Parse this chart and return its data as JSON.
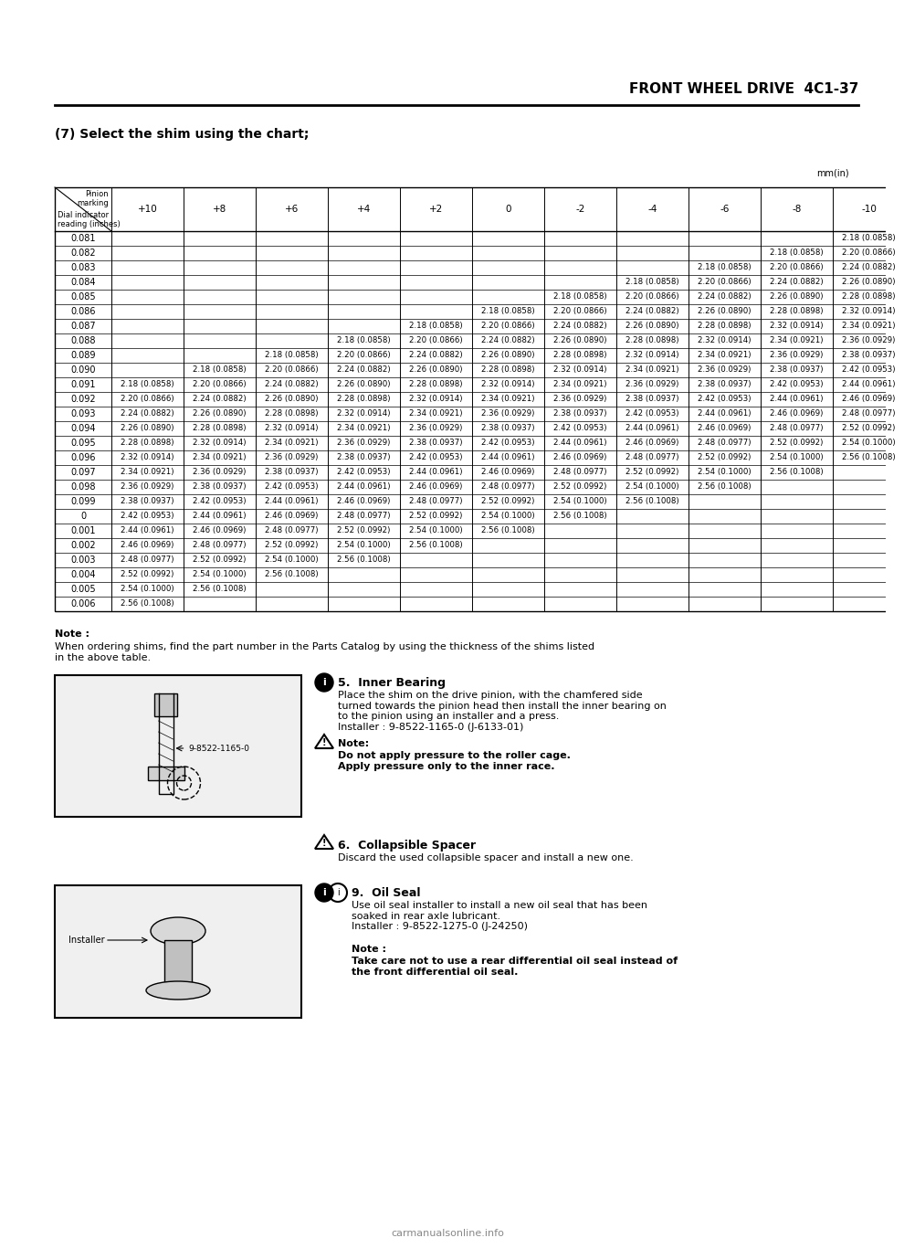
{
  "header_title": "FRONT WHEEL DRIVE  4C1-37",
  "section_title": "(7) Select the shim using the chart;",
  "unit_label": "mm(in)",
  "col_headers": [
    "+10",
    "+8",
    "+6",
    "+4",
    "+2",
    "0",
    "-2",
    "-4",
    "-6",
    "-8",
    "-10"
  ],
  "row_headers": [
    "0.081",
    "0.082",
    "0.083",
    "0.084",
    "0.085",
    "0.086",
    "0.087",
    "0.088",
    "0.089",
    "0.090",
    "0.091",
    "0.092",
    "0.093",
    "0.094",
    "0.095",
    "0.096",
    "0.097",
    "0.098",
    "0.099",
    "0",
    "0.001",
    "0.002",
    "0.003",
    "0.004",
    "0.005",
    "0.006"
  ],
  "table_data": [
    [
      "",
      "",
      "",
      "",
      "",
      "",
      "",
      "",
      "",
      "",
      "2.18 (0.0858)"
    ],
    [
      "",
      "",
      "",
      "",
      "",
      "",
      "",
      "",
      "",
      "2.18 (0.0858)",
      "2.20 (0.0866)"
    ],
    [
      "",
      "",
      "",
      "",
      "",
      "",
      "",
      "",
      "2.18 (0.0858)",
      "2.20 (0.0866)",
      "2.24 (0.0882)"
    ],
    [
      "",
      "",
      "",
      "",
      "",
      "",
      "",
      "2.18 (0.0858)",
      "2.20 (0.0866)",
      "2.24 (0.0882)",
      "2.26 (0.0890)"
    ],
    [
      "",
      "",
      "",
      "",
      "",
      "",
      "2.18 (0.0858)",
      "2.20 (0.0866)",
      "2.24 (0.0882)",
      "2.26 (0.0890)",
      "2.28 (0.0898)"
    ],
    [
      "",
      "",
      "",
      "",
      "",
      "2.18 (0.0858)",
      "2.20 (0.0866)",
      "2.24 (0.0882)",
      "2.26 (0.0890)",
      "2.28 (0.0898)",
      "2.32 (0.0914)"
    ],
    [
      "",
      "",
      "",
      "",
      "2.18 (0.0858)",
      "2.20 (0.0866)",
      "2.24 (0.0882)",
      "2.26 (0.0890)",
      "2.28 (0.0898)",
      "2.32 (0.0914)",
      "2.34 (0.0921)"
    ],
    [
      "",
      "",
      "",
      "2.18 (0.0858)",
      "2.20 (0.0866)",
      "2.24 (0.0882)",
      "2.26 (0.0890)",
      "2.28 (0.0898)",
      "2.32 (0.0914)",
      "2.34 (0.0921)",
      "2.36 (0.0929)"
    ],
    [
      "",
      "",
      "2.18 (0.0858)",
      "2.20 (0.0866)",
      "2.24 (0.0882)",
      "2.26 (0.0890)",
      "2.28 (0.0898)",
      "2.32 (0.0914)",
      "2.34 (0.0921)",
      "2.36 (0.0929)",
      "2.38 (0.0937)"
    ],
    [
      "",
      "2.18 (0.0858)",
      "2.20 (0.0866)",
      "2.24 (0.0882)",
      "2.26 (0.0890)",
      "2.28 (0.0898)",
      "2.32 (0.0914)",
      "2.34 (0.0921)",
      "2.36 (0.0929)",
      "2.38 (0.0937)",
      "2.42 (0.0953)"
    ],
    [
      "2.18 (0.0858)",
      "2.20 (0.0866)",
      "2.24 (0.0882)",
      "2.26 (0.0890)",
      "2.28 (0.0898)",
      "2.32 (0.0914)",
      "2.34 (0.0921)",
      "2.36 (0.0929)",
      "2.38 (0.0937)",
      "2.42 (0.0953)",
      "2.44 (0.0961)"
    ],
    [
      "2.20 (0.0866)",
      "2.24 (0.0882)",
      "2.26 (0.0890)",
      "2.28 (0.0898)",
      "2.32 (0.0914)",
      "2.34 (0.0921)",
      "2.36 (0.0929)",
      "2.38 (0.0937)",
      "2.42 (0.0953)",
      "2.44 (0.0961)",
      "2.46 (0.0969)"
    ],
    [
      "2.24 (0.0882)",
      "2.26 (0.0890)",
      "2.28 (0.0898)",
      "2.32 (0.0914)",
      "2.34 (0.0921)",
      "2.36 (0.0929)",
      "2.38 (0.0937)",
      "2.42 (0.0953)",
      "2.44 (0.0961)",
      "2.46 (0.0969)",
      "2.48 (0.0977)"
    ],
    [
      "2.26 (0.0890)",
      "2.28 (0.0898)",
      "2.32 (0.0914)",
      "2.34 (0.0921)",
      "2.36 (0.0929)",
      "2.38 (0.0937)",
      "2.42 (0.0953)",
      "2.44 (0.0961)",
      "2.46 (0.0969)",
      "2.48 (0.0977)",
      "2.52 (0.0992)"
    ],
    [
      "2.28 (0.0898)",
      "2.32 (0.0914)",
      "2.34 (0.0921)",
      "2.36 (0.0929)",
      "2.38 (0.0937)",
      "2.42 (0.0953)",
      "2.44 (0.0961)",
      "2.46 (0.0969)",
      "2.48 (0.0977)",
      "2.52 (0.0992)",
      "2.54 (0.1000)"
    ],
    [
      "2.32 (0.0914)",
      "2.34 (0.0921)",
      "2.36 (0.0929)",
      "2.38 (0.0937)",
      "2.42 (0.0953)",
      "2.44 (0.0961)",
      "2.46 (0.0969)",
      "2.48 (0.0977)",
      "2.52 (0.0992)",
      "2.54 (0.1000)",
      "2.56 (0.1008)"
    ],
    [
      "2.34 (0.0921)",
      "2.36 (0.0929)",
      "2.38 (0.0937)",
      "2.42 (0.0953)",
      "2.44 (0.0961)",
      "2.46 (0.0969)",
      "2.48 (0.0977)",
      "2.52 (0.0992)",
      "2.54 (0.1000)",
      "2.56 (0.1008)",
      ""
    ],
    [
      "2.36 (0.0929)",
      "2.38 (0.0937)",
      "2.42 (0.0953)",
      "2.44 (0.0961)",
      "2.46 (0.0969)",
      "2.48 (0.0977)",
      "2.52 (0.0992)",
      "2.54 (0.1000)",
      "2.56 (0.1008)",
      "",
      ""
    ],
    [
      "2.38 (0.0937)",
      "2.42 (0.0953)",
      "2.44 (0.0961)",
      "2.46 (0.0969)",
      "2.48 (0.0977)",
      "2.52 (0.0992)",
      "2.54 (0.1000)",
      "2.56 (0.1008)",
      "",
      "",
      ""
    ],
    [
      "2.42 (0.0953)",
      "2.44 (0.0961)",
      "2.46 (0.0969)",
      "2.48 (0.0977)",
      "2.52 (0.0992)",
      "2.54 (0.1000)",
      "2.56 (0.1008)",
      "",
      "",
      "",
      ""
    ],
    [
      "2.44 (0.0961)",
      "2.46 (0.0969)",
      "2.48 (0.0977)",
      "2.52 (0.0992)",
      "2.54 (0.1000)",
      "2.56 (0.1008)",
      "",
      "",
      "",
      "",
      ""
    ],
    [
      "2.46 (0.0969)",
      "2.48 (0.0977)",
      "2.52 (0.0992)",
      "2.54 (0.1000)",
      "2.56 (0.1008)",
      "",
      "",
      "",
      "",
      "",
      ""
    ],
    [
      "2.48 (0.0977)",
      "2.52 (0.0992)",
      "2.54 (0.1000)",
      "2.56 (0.1008)",
      "",
      "",
      "",
      "",
      "",
      "",
      ""
    ],
    [
      "2.52 (0.0992)",
      "2.54 (0.1000)",
      "2.56 (0.1008)",
      "",
      "",
      "",
      "",
      "",
      "",
      "",
      ""
    ],
    [
      "2.54 (0.1000)",
      "2.56 (0.1008)",
      "",
      "",
      "",
      "",
      "",
      "",
      "",
      "",
      ""
    ],
    [
      "2.56 (0.1008)",
      "",
      "",
      "",
      "",
      "",
      "",
      "",
      "",
      "",
      ""
    ]
  ],
  "note_text": "Note :\nWhen ordering shims, find the part number in the Parts Catalog by using the thickness of the shims listed\nin the above table.",
  "inner_bearing_title": "5.  Inner Bearing",
  "inner_bearing_text": "Place the shim on the drive pinion, with the chamfered side\nturned towards the pinion head then install the inner bearing on\nto the pinion using an installer and a press.\nInstaller : 9-8522-1165-0 (J-6133-01)",
  "inner_bearing_note": "Note:\nDo not apply pressure to the roller cage.\nApply pressure only to the inner race.",
  "installer_label": "9-8522-1165-0",
  "collapsible_title": "6.  Collapsible Spacer",
  "collapsible_text": "Discard the used collapsible spacer and install a new one.",
  "oil_seal_title": "9.  Oil Seal",
  "oil_seal_text": "Use oil seal installer to install a new oil seal that has been\nsoaked in rear axle lubricant.\nInstaller : 9-8522-1275-0 (J-24250)",
  "oil_seal_note": "Note :\nTake care not to use a rear differential oil seal instead of\nthe front differential oil seal.",
  "installer_label2": "Installer",
  "bg_color": "#ffffff",
  "text_color": "#000000",
  "header_line_color": "#000000"
}
